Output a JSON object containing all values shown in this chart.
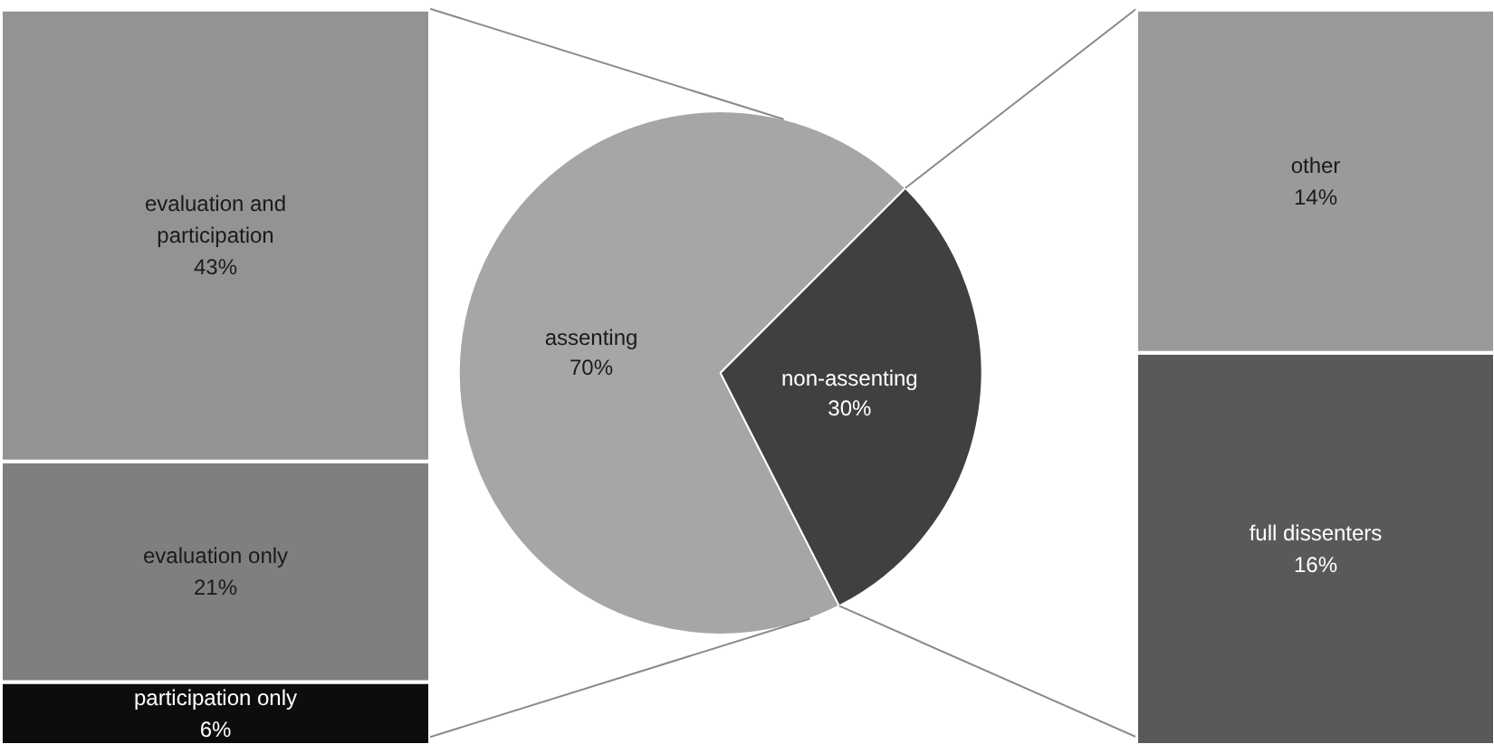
{
  "chart_data": [
    {
      "type": "bar",
      "stacked": true,
      "categories": [
        null
      ],
      "ylim": [
        0,
        70
      ],
      "tick_labels": false,
      "grid": false,
      "series": [
        {
          "name": "participation only",
          "color": "#0d0d0d",
          "values": [
            6
          ],
          "value_labels": [
            "6%"
          ]
        },
        {
          "name": "evaluation only",
          "color": "#7f7f7f",
          "values": [
            21
          ],
          "value_labels": [
            "21%"
          ]
        },
        {
          "name": "evaluation and participation",
          "color": "#939393",
          "values": [
            43
          ],
          "value_labels": [
            "43%"
          ]
        }
      ]
    },
    {
      "type": "pie",
      "categories": [
        "assenting",
        "non-assenting"
      ],
      "values": [
        70,
        30
      ],
      "colors": [
        "#a6a6a6",
        "#404040"
      ],
      "value_labels": [
        "70%",
        "30%"
      ]
    },
    {
      "type": "bar",
      "stacked": true,
      "categories": [
        null
      ],
      "ylim": [
        0,
        30
      ],
      "tick_labels": false,
      "grid": false,
      "series": [
        {
          "name": "full dissenters",
          "color": "#595959",
          "values": [
            16
          ],
          "value_labels": [
            "16%"
          ]
        },
        {
          "name": "other",
          "color": "#9a9a9a",
          "values": [
            14
          ],
          "value_labels": [
            "14%"
          ]
        }
      ]
    }
  ]
}
